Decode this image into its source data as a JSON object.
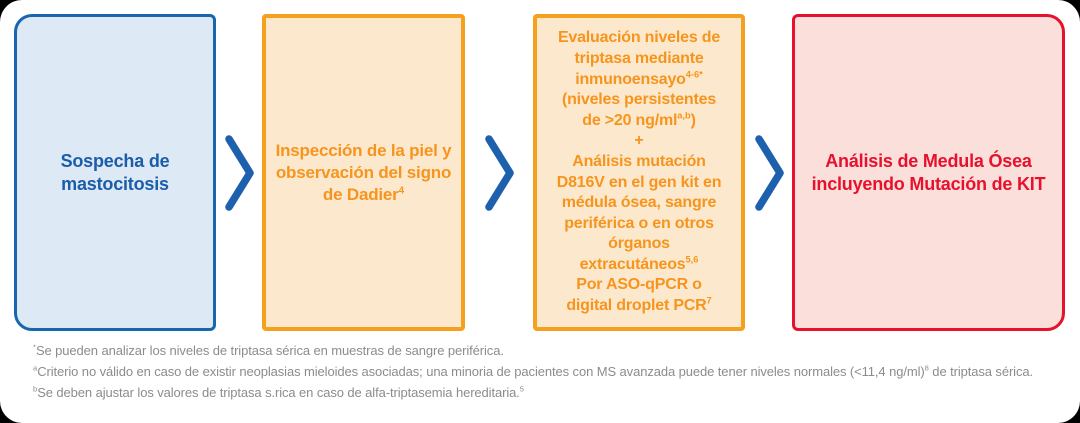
{
  "flow": {
    "chevron_color": "#1D60AE",
    "boxes": [
      {
        "name": "sospecha-de-mastocitosis",
        "border_color": "#1966AE",
        "fill_color": "#DEE9F6",
        "text_color": "#1A5DA9",
        "lines": [
          [
            {
              "t": "Sospecha de"
            }
          ],
          [
            {
              "t": "mastocitosis"
            }
          ]
        ]
      },
      {
        "name": "inspeccion-de-la-piel",
        "border_color": "#F5A01F",
        "fill_color": "#FCE9CD",
        "text_color": "#F7941D",
        "lines": [
          [
            {
              "t": "Inspección de la piel y"
            }
          ],
          [
            {
              "t": "observación del signo"
            }
          ],
          [
            {
              "t": "de Dadier"
            },
            {
              "t": "4",
              "sup": true
            }
          ]
        ]
      },
      {
        "name": "evaluacion-triptasa-y-mutacion-d816v",
        "border_color": "#F5A01F",
        "fill_color": "#FCE9CD",
        "text_color": "#F7941D",
        "lines": [
          [
            {
              "t": "Evaluación niveles de"
            }
          ],
          [
            {
              "t": "triptasa mediante"
            }
          ],
          [
            {
              "t": "inmunoensayo"
            },
            {
              "t": "4-6*",
              "sup": true
            }
          ],
          [
            {
              "t": "(niveles persistentes"
            }
          ],
          [
            {
              "t": "de >20 ng/ml"
            },
            {
              "t": "a,b",
              "sup": true
            },
            {
              "t": ")"
            }
          ],
          [
            {
              "t": "+"
            }
          ],
          [
            {
              "t": "Análisis mutación"
            }
          ],
          [
            {
              "t": "D816V en el gen kit en"
            }
          ],
          [
            {
              "t": "médula ósea, sangre"
            }
          ],
          [
            {
              "t": "periférica o en otros"
            }
          ],
          [
            {
              "t": "órganos"
            }
          ],
          [
            {
              "t": "extracutáneos"
            },
            {
              "t": "5,6",
              "sup": true
            }
          ],
          [
            {
              "t": "Por ASO-qPCR o"
            }
          ],
          [
            {
              "t": "digital droplet PCR"
            },
            {
              "t": "7",
              "sup": true
            }
          ]
        ]
      },
      {
        "name": "analisis-de-medula-osea",
        "border_color": "#E8112D",
        "fill_color": "#FBDFDA",
        "text_color": "#E8112D",
        "lines": [
          [
            {
              "t": "Análisis de Medula Ósea"
            }
          ],
          [
            {
              "t": "incluyendo Mutación de KIT"
            }
          ]
        ]
      }
    ]
  },
  "footnotes": {
    "color": "#8A8C8E",
    "items": [
      {
        "segments": [
          {
            "t": "*",
            "sup": true
          },
          {
            "t": "Se pueden analizar los niveles de triptasa sérica en muestras de sangre periférica."
          }
        ]
      },
      {
        "segments": [
          {
            "t": "a",
            "sup": true
          },
          {
            "t": "Criterio no válido en caso de existir neoplasias mieloides asociadas; una minoria de pacientes con MS avanzada puede tener niveles normales (<11,4 ng/ml)"
          },
          {
            "t": "8",
            "sup": true
          },
          {
            "t": " de triptasa sérica."
          }
        ]
      },
      {
        "segments": [
          {
            "t": "b",
            "sup": true
          },
          {
            "t": "Se deben ajustar los valores de triptasa s.rica en caso de alfa-triptasemia hereditaria."
          },
          {
            "t": "5",
            "sup": true
          }
        ]
      }
    ]
  }
}
